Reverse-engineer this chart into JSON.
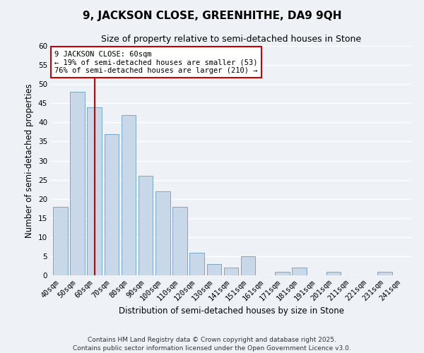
{
  "title": "9, JACKSON CLOSE, GREENHITHE, DA9 9QH",
  "subtitle": "Size of property relative to semi-detached houses in Stone",
  "xlabel": "Distribution of semi-detached houses by size in Stone",
  "ylabel": "Number of semi-detached properties",
  "categories": [
    "40sqm",
    "50sqm",
    "60sqm",
    "70sqm",
    "80sqm",
    "90sqm",
    "100sqm",
    "110sqm",
    "120sqm",
    "130sqm",
    "141sqm",
    "151sqm",
    "161sqm",
    "171sqm",
    "181sqm",
    "191sqm",
    "201sqm",
    "211sqm",
    "221sqm",
    "231sqm",
    "241sqm"
  ],
  "values": [
    18,
    48,
    44,
    37,
    42,
    26,
    22,
    18,
    6,
    3,
    2,
    5,
    0,
    1,
    2,
    0,
    1,
    0,
    0,
    1,
    0
  ],
  "highlight_index": 2,
  "bar_color": "#c8d8e8",
  "bar_edge_color": "#7aa8c8",
  "highlight_line_color": "#cc0000",
  "ylim": [
    0,
    60
  ],
  "yticks": [
    0,
    5,
    10,
    15,
    20,
    25,
    30,
    35,
    40,
    45,
    50,
    55,
    60
  ],
  "annotation_title": "9 JACKSON CLOSE: 60sqm",
  "annotation_line1": "← 19% of semi-detached houses are smaller (53)",
  "annotation_line2": "76% of semi-detached houses are larger (210) →",
  "annotation_box_color": "#ffffff",
  "annotation_box_edge_color": "#cc0000",
  "footer_line1": "Contains HM Land Registry data © Crown copyright and database right 2025.",
  "footer_line2": "Contains public sector information licensed under the Open Government Licence v3.0.",
  "background_color": "#eef2f7",
  "grid_color": "#ffffff",
  "title_fontsize": 11,
  "subtitle_fontsize": 9,
  "axis_label_fontsize": 8.5,
  "tick_fontsize": 7.5,
  "annotation_fontsize": 7.5,
  "footer_fontsize": 6.5
}
